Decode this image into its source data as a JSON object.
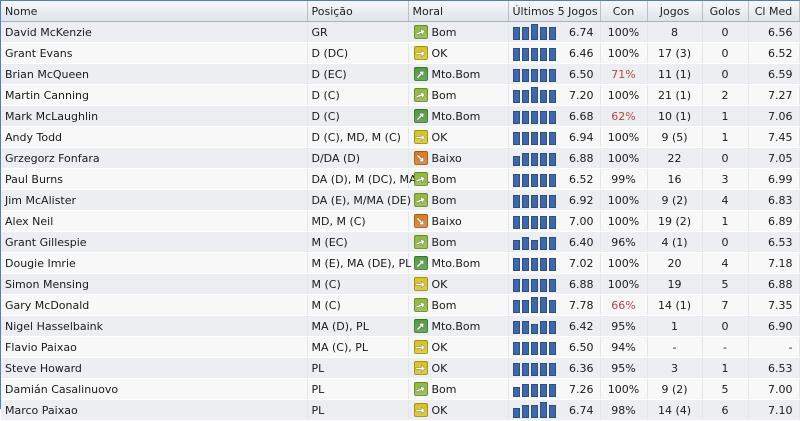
{
  "columns": {
    "nome": "Nome",
    "posicao": "Posição",
    "moral": "Moral",
    "ultimos": "Últimos 5 Jogos",
    "con": "Con",
    "jogos": "Jogos",
    "golos": "Golos",
    "clmed": "Cl Med"
  },
  "morale_colors": {
    "good": "#8cb83a",
    "ok": "#d8c21e",
    "very_good": "#4f9a3c",
    "low": "#d77a1e"
  },
  "players": [
    {
      "name": "David McKenzie",
      "pos": "GR",
      "moral": "Bom",
      "mlevel": "good",
      "form": [
        4,
        4,
        5,
        4,
        4
      ],
      "avg": "6.74",
      "con": "100%",
      "con_low": false,
      "jogos": "8",
      "golos": "0",
      "clmed": "6.56"
    },
    {
      "name": "Grant Evans",
      "pos": "D (DC)",
      "moral": "OK",
      "mlevel": "ok",
      "form": [
        4,
        4,
        4,
        4,
        4
      ],
      "avg": "6.46",
      "con": "100%",
      "con_low": false,
      "jogos": "17 (3)",
      "golos": "0",
      "clmed": "6.52"
    },
    {
      "name": "Brian McQueen",
      "pos": "D (EC)",
      "moral": "Mto.Bom",
      "mlevel": "very_good",
      "form": [
        4,
        4,
        4,
        4,
        4
      ],
      "avg": "6.50",
      "con": "71%",
      "con_low": true,
      "jogos": "11 (1)",
      "golos": "0",
      "clmed": "6.59"
    },
    {
      "name": "Martin Canning",
      "pos": "D (C)",
      "moral": "Bom",
      "mlevel": "good",
      "form": [
        4,
        4,
        5,
        4,
        4
      ],
      "avg": "7.20",
      "con": "100%",
      "con_low": false,
      "jogos": "21 (1)",
      "golos": "2",
      "clmed": "7.27"
    },
    {
      "name": "Mark McLaughlin",
      "pos": "D (C)",
      "moral": "Mto.Bom",
      "mlevel": "very_good",
      "form": [
        4,
        4,
        4,
        4,
        4
      ],
      "avg": "6.68",
      "con": "62%",
      "con_low": true,
      "jogos": "10 (1)",
      "golos": "1",
      "clmed": "7.06"
    },
    {
      "name": "Andy Todd",
      "pos": "D (C), MD, M (C)",
      "moral": "OK",
      "mlevel": "ok",
      "form": [
        4,
        4,
        4,
        4,
        4
      ],
      "avg": "6.94",
      "con": "100%",
      "con_low": false,
      "jogos": "9 (5)",
      "golos": "1",
      "clmed": "7.45"
    },
    {
      "name": "Grzegorz Fonfara",
      "pos": "D/DA (D)",
      "moral": "Baixo",
      "mlevel": "low",
      "form": [
        3,
        4,
        4,
        4,
        4
      ],
      "avg": "6.88",
      "con": "100%",
      "con_low": false,
      "jogos": "22",
      "golos": "0",
      "clmed": "7.05"
    },
    {
      "name": "Paul Burns",
      "pos": "DA (D), M (DC), MA ...",
      "moral": "Bom",
      "mlevel": "good",
      "form": [
        4,
        4,
        4,
        4,
        4
      ],
      "avg": "6.52",
      "con": "99%",
      "con_low": false,
      "jogos": "16",
      "golos": "3",
      "clmed": "6.99"
    },
    {
      "name": "Jim McAlister",
      "pos": "DA (E), M/MA (DE)",
      "moral": "Bom",
      "mlevel": "good",
      "form": [
        4,
        4,
        4,
        4,
        4
      ],
      "avg": "6.92",
      "con": "100%",
      "con_low": false,
      "jogos": "9 (2)",
      "golos": "4",
      "clmed": "6.83"
    },
    {
      "name": "Alex Neil",
      "pos": "MD, M (C)",
      "moral": "Baixo",
      "mlevel": "low",
      "form": [
        4,
        4,
        4,
        4,
        4
      ],
      "avg": "7.00",
      "con": "100%",
      "con_low": false,
      "jogos": "19 (2)",
      "golos": "1",
      "clmed": "6.89"
    },
    {
      "name": "Grant Gillespie",
      "pos": "M (EC)",
      "moral": "Bom",
      "mlevel": "good",
      "form": [
        3,
        4,
        3,
        4,
        4
      ],
      "avg": "6.40",
      "con": "96%",
      "con_low": false,
      "jogos": "4 (1)",
      "golos": "0",
      "clmed": "6.53"
    },
    {
      "name": "Dougie Imrie",
      "pos": "M (E), MA (DE), PL",
      "moral": "Mto.Bom",
      "mlevel": "very_good",
      "form": [
        4,
        4,
        4,
        4,
        4
      ],
      "avg": "7.02",
      "con": "100%",
      "con_low": false,
      "jogos": "20",
      "golos": "4",
      "clmed": "7.18"
    },
    {
      "name": "Simon Mensing",
      "pos": "M (C)",
      "moral": "OK",
      "mlevel": "ok",
      "form": [
        4,
        4,
        4,
        4,
        4
      ],
      "avg": "6.88",
      "con": "100%",
      "con_low": false,
      "jogos": "19",
      "golos": "5",
      "clmed": "6.88"
    },
    {
      "name": "Gary McDonald",
      "pos": "M (C)",
      "moral": "Bom",
      "mlevel": "good",
      "form": [
        4,
        4,
        5,
        5,
        4
      ],
      "avg": "7.78",
      "con": "66%",
      "con_low": true,
      "jogos": "14 (1)",
      "golos": "7",
      "clmed": "7.35"
    },
    {
      "name": "Nigel Hasselbaink",
      "pos": "MA (D), PL",
      "moral": "Mto.Bom",
      "mlevel": "very_good",
      "form": [
        4,
        4,
        3,
        4,
        4
      ],
      "avg": "6.42",
      "con": "95%",
      "con_low": false,
      "jogos": "1",
      "golos": "0",
      "clmed": "6.90"
    },
    {
      "name": "Flavio Paixao",
      "pos": "MA (C), PL",
      "moral": "OK",
      "mlevel": "ok",
      "form": [
        4,
        4,
        4,
        4,
        4
      ],
      "avg": "6.50",
      "con": "94%",
      "con_low": false,
      "jogos": "-",
      "golos": "-",
      "clmed": "-"
    },
    {
      "name": "Steve Howard",
      "pos": "PL",
      "moral": "OK",
      "mlevel": "ok",
      "form": [
        4,
        4,
        4,
        4,
        4
      ],
      "avg": "6.36",
      "con": "95%",
      "con_low": false,
      "jogos": "3",
      "golos": "1",
      "clmed": "6.53"
    },
    {
      "name": "Damián Casalinuovo",
      "pos": "PL",
      "moral": "Bom",
      "mlevel": "good",
      "form": [
        3,
        4,
        4,
        4,
        4
      ],
      "avg": "7.26",
      "con": "100%",
      "con_low": false,
      "jogos": "9 (2)",
      "golos": "5",
      "clmed": "7.00"
    },
    {
      "name": "Marco Paixao",
      "pos": "PL",
      "moral": "OK",
      "mlevel": "ok",
      "form": [
        3,
        4,
        4,
        5,
        4
      ],
      "avg": "6.74",
      "con": "98%",
      "con_low": false,
      "jogos": "14 (4)",
      "golos": "6",
      "clmed": "7.10"
    }
  ]
}
